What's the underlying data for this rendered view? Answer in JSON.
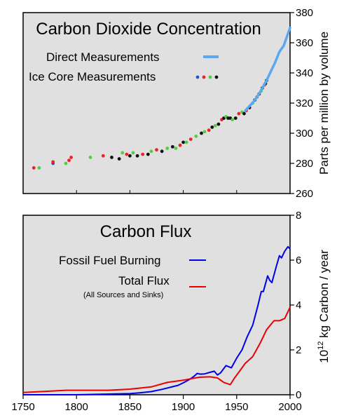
{
  "chart_data": [
    {
      "type": "line",
      "title": "Carbon Dioxide Concentration",
      "ylabel": "Parts per million by volume",
      "y_axis_side": "right",
      "xlim": [
        1750,
        2000
      ],
      "ylim": [
        260,
        380
      ],
      "yticks": [
        260,
        280,
        300,
        320,
        340,
        360,
        380
      ],
      "background": "#e0e0e0",
      "legend_position": "top-left",
      "series": [
        {
          "name": "Direct Measurements",
          "kind": "line",
          "color": "#5aa9f0",
          "x": [
            1958,
            1962,
            1966,
            1970,
            1974,
            1978,
            1982,
            1986,
            1990,
            1994,
            1998,
            2000
          ],
          "y": [
            315,
            318,
            321,
            325,
            330,
            335,
            341,
            347,
            354,
            358,
            366,
            370
          ]
        },
        {
          "name": "Ice Core Measurements",
          "kind": "scatter",
          "colors": [
            "#2255cc",
            "#ee2222",
            "#55cc44",
            "#111111"
          ],
          "points": [
            {
              "x": 1760,
              "y": 277,
              "c": 1
            },
            {
              "x": 1765,
              "y": 277,
              "c": 2
            },
            {
              "x": 1778,
              "y": 280,
              "c": 0
            },
            {
              "x": 1778,
              "y": 281,
              "c": 1
            },
            {
              "x": 1790,
              "y": 280,
              "c": 2
            },
            {
              "x": 1793,
              "y": 282,
              "c": 1
            },
            {
              "x": 1795,
              "y": 284,
              "c": 1
            },
            {
              "x": 1813,
              "y": 284,
              "c": 2
            },
            {
              "x": 1825,
              "y": 285,
              "c": 1
            },
            {
              "x": 1833,
              "y": 284,
              "c": 3
            },
            {
              "x": 1840,
              "y": 283,
              "c": 3
            },
            {
              "x": 1843,
              "y": 287,
              "c": 2
            },
            {
              "x": 1847,
              "y": 286,
              "c": 1
            },
            {
              "x": 1850,
              "y": 285,
              "c": 3
            },
            {
              "x": 1853,
              "y": 287,
              "c": 2
            },
            {
              "x": 1857,
              "y": 285,
              "c": 3
            },
            {
              "x": 1862,
              "y": 286,
              "c": 1
            },
            {
              "x": 1867,
              "y": 286,
              "c": 3
            },
            {
              "x": 1870,
              "y": 288,
              "c": 2
            },
            {
              "x": 1875,
              "y": 289,
              "c": 1
            },
            {
              "x": 1880,
              "y": 288,
              "c": 3
            },
            {
              "x": 1885,
              "y": 290,
              "c": 2
            },
            {
              "x": 1890,
              "y": 291,
              "c": 3
            },
            {
              "x": 1893,
              "y": 290,
              "c": 2
            },
            {
              "x": 1897,
              "y": 292,
              "c": 1
            },
            {
              "x": 1900,
              "y": 294,
              "c": 3
            },
            {
              "x": 1903,
              "y": 294,
              "c": 2
            },
            {
              "x": 1907,
              "y": 296,
              "c": 1
            },
            {
              "x": 1912,
              "y": 298,
              "c": 2
            },
            {
              "x": 1917,
              "y": 300,
              "c": 3
            },
            {
              "x": 1920,
              "y": 301,
              "c": 2
            },
            {
              "x": 1924,
              "y": 302,
              "c": 1
            },
            {
              "x": 1927,
              "y": 304,
              "c": 3
            },
            {
              "x": 1930,
              "y": 305,
              "c": 2
            },
            {
              "x": 1933,
              "y": 306,
              "c": 3
            },
            {
              "x": 1936,
              "y": 309,
              "c": 1
            },
            {
              "x": 1938,
              "y": 310,
              "c": 3
            },
            {
              "x": 1940,
              "y": 311,
              "c": 2
            },
            {
              "x": 1942,
              "y": 310,
              "c": 3
            },
            {
              "x": 1944,
              "y": 310,
              "c": 3
            },
            {
              "x": 1946,
              "y": 309,
              "c": 2
            },
            {
              "x": 1949,
              "y": 310,
              "c": 3
            },
            {
              "x": 1952,
              "y": 313,
              "c": 1
            },
            {
              "x": 1955,
              "y": 314,
              "c": 2
            },
            {
              "x": 1957,
              "y": 313,
              "c": 3
            },
            {
              "x": 1959,
              "y": 315,
              "c": 1
            },
            {
              "x": 1962,
              "y": 317,
              "c": 3
            },
            {
              "x": 1965,
              "y": 320,
              "c": 2
            },
            {
              "x": 1967,
              "y": 322,
              "c": 3
            },
            {
              "x": 1969,
              "y": 324,
              "c": 1
            },
            {
              "x": 1971,
              "y": 326,
              "c": 3
            },
            {
              "x": 1973,
              "y": 328,
              "c": 2
            },
            {
              "x": 1974,
              "y": 330,
              "c": 3
            },
            {
              "x": 1976,
              "y": 332,
              "c": 1
            },
            {
              "x": 1977,
              "y": 333,
              "c": 3
            },
            {
              "x": 1978,
              "y": 335,
              "c": 3
            }
          ]
        }
      ]
    },
    {
      "type": "line",
      "title": "Carbon Flux",
      "ylabel_superscript": "12",
      "ylabel_prefix": "10",
      "ylabel_suffix": " kg Carbon / year",
      "y_axis_side": "right",
      "xlim": [
        1750,
        2000
      ],
      "ylim": [
        0,
        8
      ],
      "yticks": [
        0,
        2,
        4,
        6,
        8
      ],
      "xticks": [
        1750,
        1800,
        1850,
        1900,
        1950,
        2000
      ],
      "background": "#e0e0e0",
      "legend_position": "top-left",
      "series": [
        {
          "name": "Fossil Fuel Burning",
          "color": "#0000ee",
          "x": [
            1750,
            1800,
            1850,
            1860,
            1870,
            1880,
            1890,
            1895,
            1900,
            1905,
            1910,
            1913,
            1916,
            1920,
            1925,
            1929,
            1932,
            1935,
            1940,
            1945,
            1950,
            1955,
            1960,
            1965,
            1970,
            1973,
            1975,
            1979,
            1981,
            1983,
            1987,
            1990,
            1992,
            1995,
            1998,
            2000
          ],
          "y": [
            0.0,
            0.0,
            0.05,
            0.09,
            0.14,
            0.24,
            0.36,
            0.42,
            0.53,
            0.66,
            0.82,
            0.95,
            0.92,
            0.93,
            1.0,
            1.05,
            0.88,
            0.98,
            1.3,
            1.2,
            1.63,
            2.0,
            2.6,
            3.1,
            4.0,
            4.6,
            4.6,
            5.3,
            5.1,
            5.0,
            5.7,
            6.2,
            6.1,
            6.4,
            6.6,
            6.5
          ]
        },
        {
          "name": "Total Flux",
          "sublabel": "(All Sources and Sinks)",
          "color": "#ee0000",
          "x": [
            1750,
            1770,
            1790,
            1810,
            1830,
            1850,
            1870,
            1885,
            1900,
            1915,
            1925,
            1932,
            1938,
            1944,
            1948,
            1952,
            1958,
            1965,
            1972,
            1978,
            1985,
            1990,
            1995,
            2000
          ],
          "y": [
            0.1,
            0.15,
            0.2,
            0.2,
            0.2,
            0.25,
            0.35,
            0.55,
            0.65,
            0.78,
            0.8,
            0.75,
            0.55,
            0.45,
            0.75,
            1.0,
            1.4,
            1.7,
            2.3,
            2.9,
            3.3,
            3.3,
            3.4,
            3.9
          ]
        }
      ]
    }
  ]
}
